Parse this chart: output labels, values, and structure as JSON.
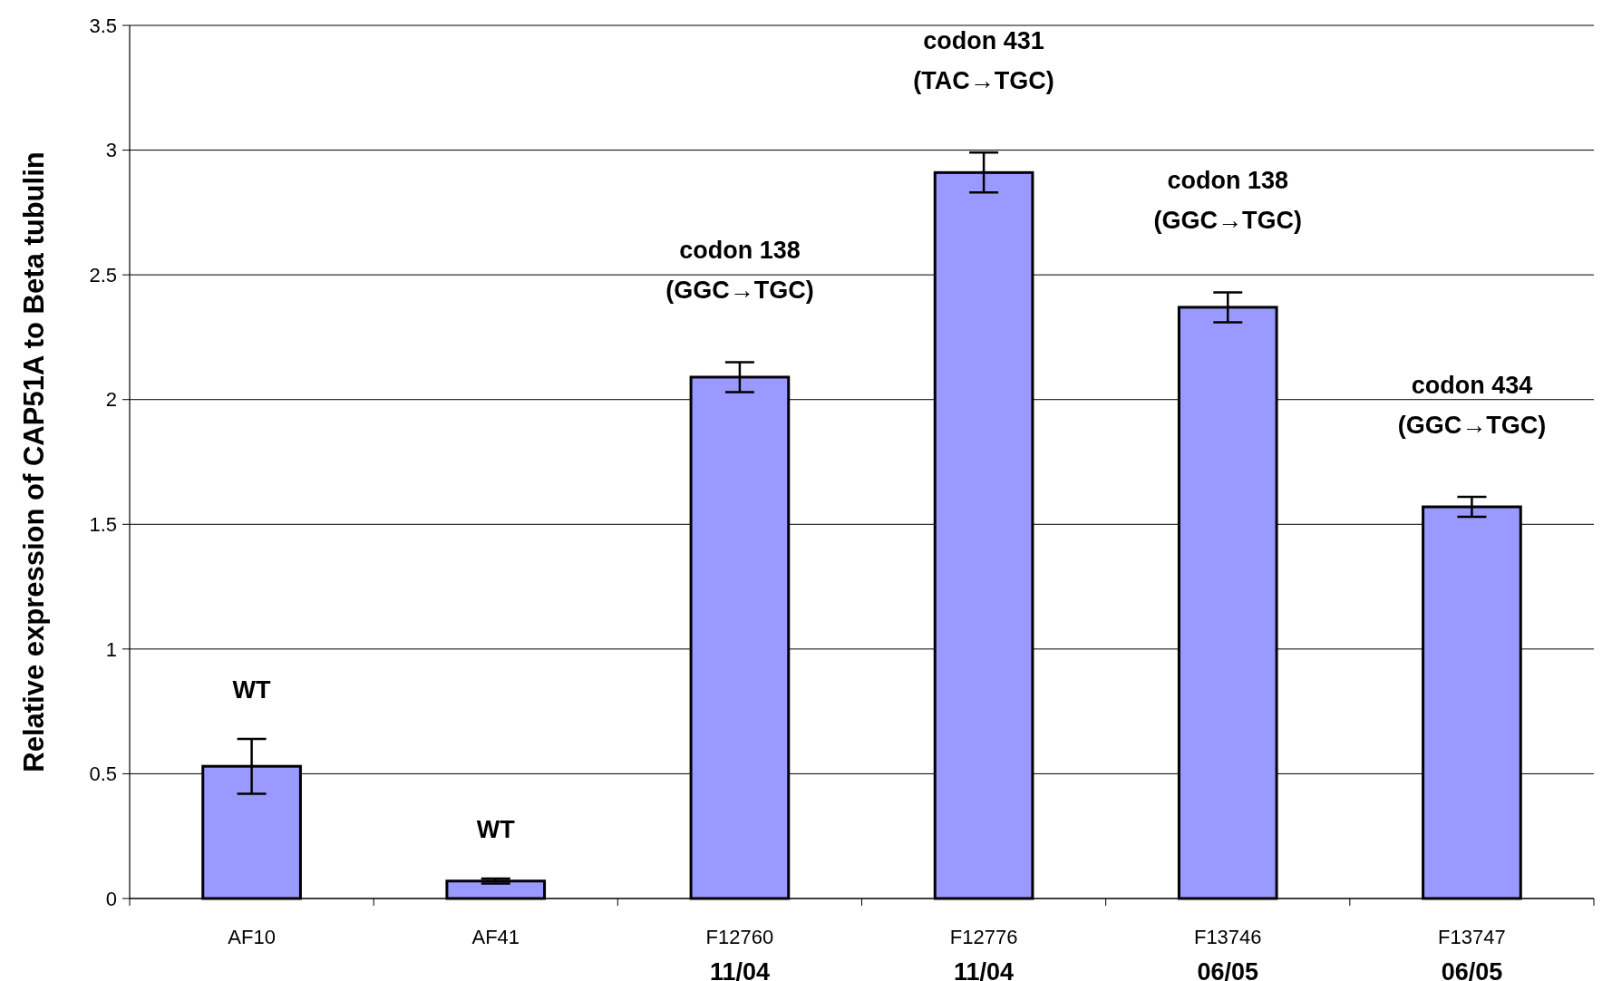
{
  "chart_data": {
    "type": "bar",
    "ylabel": "Relative expression of CAP51A to Beta tubulin",
    "categories": [
      "AF10",
      "AF41",
      "F12760\n11/04",
      "F12776\n11/04",
      "F13746\n06/05",
      "F13747\n06/05"
    ],
    "values": [
      0.53,
      0.07,
      2.09,
      2.91,
      2.37,
      1.57
    ],
    "errors": [
      0.11,
      0.01,
      0.06,
      0.08,
      0.06,
      0.04
    ],
    "color": "#9999ff",
    "ylim": [
      0,
      3.5
    ],
    "yticks": [
      0,
      0.5,
      1,
      1.5,
      2,
      2.5,
      3,
      3.5
    ],
    "grid": "y",
    "annotations": [
      "WT",
      "WT",
      "codon 138\n(GGC→TGC)",
      "codon 431\n(TAC→TGC)",
      "codon 138\n(GGC→TGC)",
      "codon 434\n(GGC→TGC)"
    ]
  }
}
